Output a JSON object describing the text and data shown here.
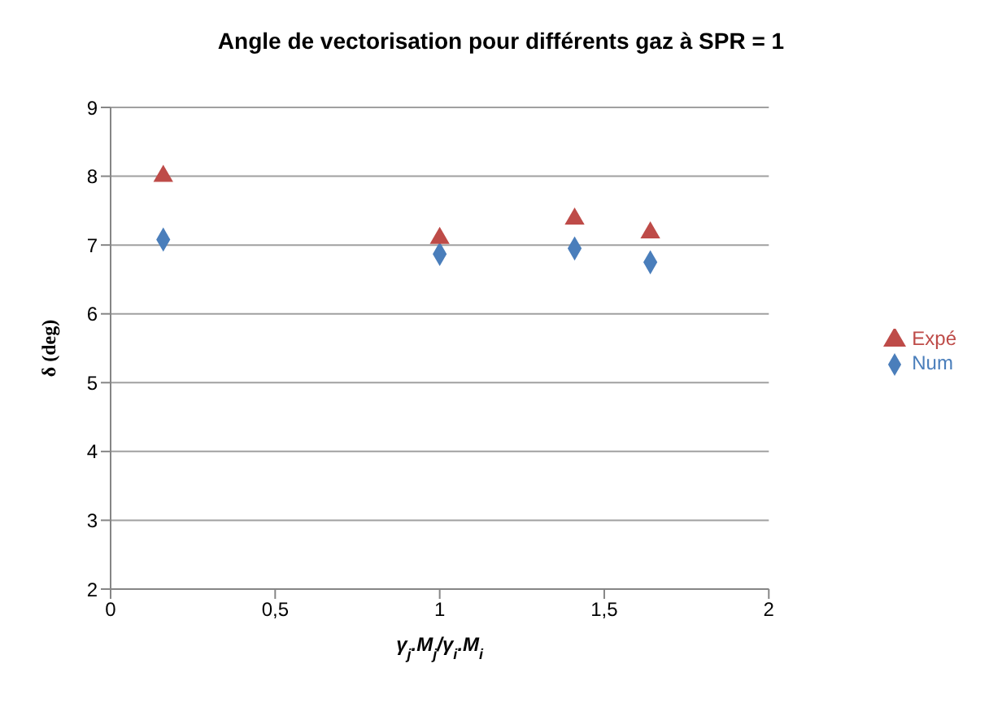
{
  "chart_data": {
    "type": "scatter",
    "title": "Angle de vectorisation pour différents gaz à SPR = 1",
    "xlabel": "γ$_{j}$.M$_{j}$/γ$_{i}$.M$_{i}$",
    "ylabel": "δ (deg)",
    "series": [
      {
        "name": "Num",
        "color": "#4a7ebb",
        "marker": "diamond",
        "x": [
          0.16,
          1.0,
          1.41,
          1.64
        ],
        "values": [
          7.08,
          6.87,
          6.95,
          6.75
        ]
      },
      {
        "name": "Expé",
        "color": "#be4b48",
        "marker": "triangle",
        "x": [
          0.16,
          1.0,
          1.41,
          1.64
        ],
        "values": [
          8.0,
          7.1,
          7.38,
          7.18
        ]
      }
    ],
    "xlim": [
      0,
      2
    ],
    "xticks": [
      0,
      {
        "value": 0.5,
        "label": "0,5"
      },
      1,
      {
        "value": 1.5,
        "label": "1,5"
      },
      2
    ],
    "ylim": [
      2,
      9
    ],
    "yticks": [
      2,
      3,
      4,
      5,
      6,
      7,
      8,
      9
    ],
    "grid": "y",
    "legend": "right"
  }
}
